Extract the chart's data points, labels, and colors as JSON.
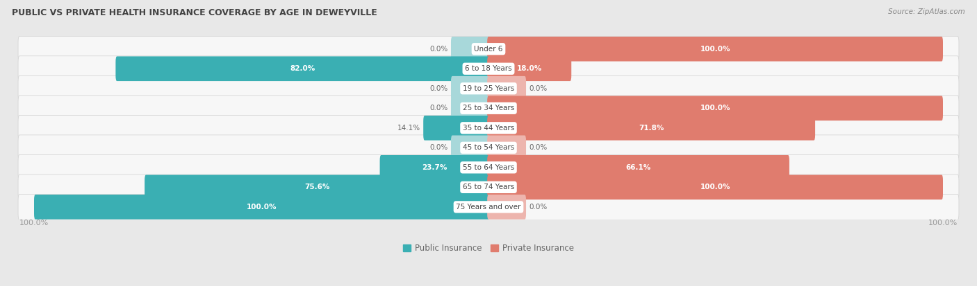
{
  "title": "PUBLIC VS PRIVATE HEALTH INSURANCE COVERAGE BY AGE IN DEWEYVILLE",
  "source": "Source: ZipAtlas.com",
  "categories": [
    "Under 6",
    "6 to 18 Years",
    "19 to 25 Years",
    "25 to 34 Years",
    "35 to 44 Years",
    "45 to 54 Years",
    "55 to 64 Years",
    "65 to 74 Years",
    "75 Years and over"
  ],
  "public_values": [
    0.0,
    82.0,
    0.0,
    0.0,
    14.1,
    0.0,
    23.7,
    75.6,
    100.0
  ],
  "private_values": [
    100.0,
    18.0,
    0.0,
    100.0,
    71.8,
    0.0,
    66.1,
    100.0,
    0.0
  ],
  "public_color": "#3aafb3",
  "public_color_light": "#a8d8da",
  "private_color": "#e07c6e",
  "private_color_light": "#edb5ae",
  "public_label": "Public Insurance",
  "private_label": "Private Insurance",
  "bg_color": "#e8e8e8",
  "row_bg_color": "#f7f7f7",
  "row_border_color": "#d0d0d0",
  "text_white": "#ffffff",
  "text_dark": "#666666",
  "text_center": "#444444",
  "axis_label_color": "#999999",
  "title_color": "#444444",
  "source_color": "#888888",
  "max_value": 100.0,
  "stub_size": 8.0,
  "figsize": [
    14.06,
    4.13
  ],
  "dpi": 100
}
